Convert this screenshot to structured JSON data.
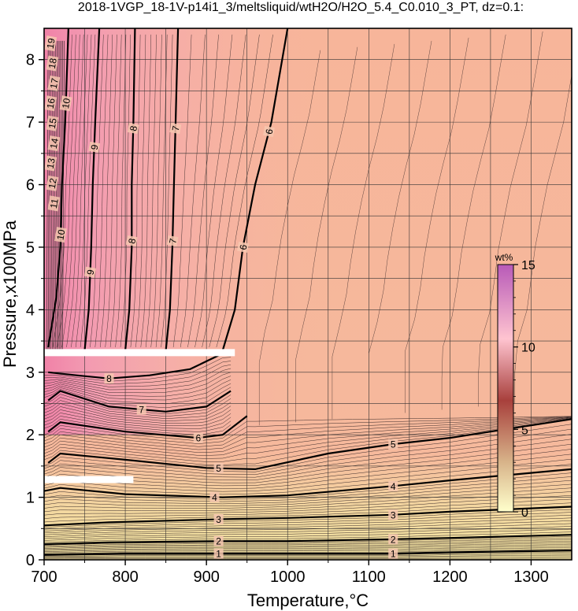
{
  "chart_data": {
    "type": "heatmap",
    "title": "2018-1VGP_18-1V-p14i1_3/meltsliquid/wtH2O/H2O_5.4_C0.010_3_PT, dz=0.1:",
    "xlabel": "Temperature,°C",
    "ylabel": "Pressure,x100MPa",
    "xlim": [
      700,
      1350
    ],
    "ylim": [
      0,
      8.5
    ],
    "x_ticks": [
      "700",
      "800",
      "900",
      "1000",
      "1100",
      "1200",
      "1300"
    ],
    "y_ticks": [
      "0",
      "1",
      "2",
      "3",
      "4",
      "5",
      "6",
      "7",
      "8"
    ],
    "grid": true,
    "colorbar": {
      "label": "wt%",
      "range": [
        0,
        15
      ],
      "ticks": [
        "0",
        "5",
        "10",
        "15"
      ],
      "placement": "right-inside",
      "colors": [
        "#ffffcc",
        "#d2b48c",
        "#a53a3a",
        "#ffc0cb",
        "#c064c0"
      ]
    },
    "background_colors": {
      "low_water": "#f4e7a8",
      "mid_water": "#f7b19a",
      "high_water": "#f29ab5"
    },
    "contour_labels": {
      "horizontal": [
        {
          "label": "1",
          "points": [
            [
              700,
              0.08
            ],
            [
              800,
              0.1
            ],
            [
              920,
              0.1
            ],
            [
              1000,
              0.1
            ],
            [
              1130,
              0.1
            ],
            [
              1200,
              0.12
            ],
            [
              1350,
              0.15
            ]
          ],
          "label_x": [
            915,
            1130
          ]
        },
        {
          "label": "2",
          "points": [
            [
              700,
              0.25
            ],
            [
              780,
              0.28
            ],
            [
              920,
              0.3
            ],
            [
              1000,
              0.3
            ],
            [
              1130,
              0.33
            ],
            [
              1200,
              0.35
            ],
            [
              1350,
              0.4
            ]
          ],
          "label_x": [
            915,
            1130
          ]
        },
        {
          "label": "3",
          "points": [
            [
              700,
              0.55
            ],
            [
              780,
              0.6
            ],
            [
              920,
              0.65
            ],
            [
              1000,
              0.67
            ],
            [
              1130,
              0.72
            ],
            [
              1200,
              0.77
            ],
            [
              1350,
              0.85
            ]
          ],
          "label_x": [
            915,
            1130
          ]
        },
        {
          "label": "4",
          "points": [
            [
              700,
              1.1
            ],
            [
              720,
              1.15
            ],
            [
              800,
              1.05
            ],
            [
              920,
              1.0
            ],
            [
              1000,
              1.03
            ],
            [
              1130,
              1.18
            ],
            [
              1200,
              1.27
            ],
            [
              1350,
              1.45
            ]
          ],
          "label_x": [
            910,
            1130
          ]
        },
        {
          "label": "5",
          "points": [
            [
              705,
              1.55
            ],
            [
              720,
              1.7
            ],
            [
              800,
              1.6
            ],
            [
              900,
              1.47
            ],
            [
              960,
              1.45
            ],
            [
              1050,
              1.7
            ],
            [
              1130,
              1.85
            ],
            [
              1200,
              1.95
            ],
            [
              1350,
              2.25
            ]
          ],
          "label_x": [
            915,
            1130
          ]
        },
        {
          "label": "6",
          "points": [
            [
              705,
              2.05
            ],
            [
              720,
              2.2
            ],
            [
              800,
              2.05
            ],
            [
              890,
              1.95
            ],
            [
              920,
              2.0
            ],
            [
              950,
              2.3
            ]
          ],
          "label_x": [
            890
          ]
        },
        {
          "label": "7",
          "points": [
            [
              705,
              2.55
            ],
            [
              720,
              2.7
            ],
            [
              780,
              2.45
            ],
            [
              850,
              2.37
            ],
            [
              900,
              2.45
            ],
            [
              930,
              2.7
            ]
          ],
          "label_x": [
            820
          ]
        },
        {
          "label": "8",
          "points": [
            [
              705,
              3.0
            ],
            [
              740,
              2.95
            ],
            [
              780,
              2.9
            ],
            [
              830,
              2.95
            ],
            [
              880,
              3.05
            ],
            [
              920,
              3.3
            ]
          ],
          "label_x": [
            780
          ]
        }
      ],
      "vertical": [
        {
          "label": "6",
          "points": [
            [
              920,
              3.35
            ],
            [
              935,
              4.0
            ],
            [
              945,
              5.0
            ],
            [
              960,
              6.0
            ],
            [
              980,
              7.0
            ],
            [
              1000,
              8.5
            ]
          ],
          "label_y": [
            5.0,
            6.85
          ]
        },
        {
          "label": "7",
          "points": [
            [
              850,
              3.35
            ],
            [
              855,
              4.0
            ],
            [
              858,
              5.0
            ],
            [
              860,
              6.0
            ],
            [
              862,
              7.0
            ],
            [
              865,
              8.5
            ]
          ],
          "label_y": [
            5.1,
            6.9
          ]
        },
        {
          "label": "8",
          "points": [
            [
              800,
              3.35
            ],
            [
              805,
              4.0
            ],
            [
              808,
              5.0
            ],
            [
              808,
              6.0
            ],
            [
              810,
              7.0
            ],
            [
              812,
              8.5
            ]
          ],
          "label_y": [
            5.1,
            6.9
          ]
        },
        {
          "label": "9",
          "points": [
            [
              750,
              3.35
            ],
            [
              755,
              4.0
            ],
            [
              758,
              5.0
            ],
            [
              760,
              6.0
            ],
            [
              763,
              7.0
            ],
            [
              768,
              8.5
            ]
          ],
          "label_y": [
            4.6,
            6.6
          ]
        },
        {
          "label": "10",
          "points": [
            [
              705,
              3.4
            ],
            [
              715,
              4.2
            ],
            [
              720,
              5.0
            ],
            [
              722,
              6.0
            ],
            [
              726,
              7.0
            ],
            [
              730,
              8.5
            ]
          ],
          "label_y": [
            5.2,
            7.3
          ]
        }
      ]
    },
    "extra_labels": [
      "11",
      "12",
      "13",
      "14",
      "15",
      "16",
      "17",
      "18",
      "19"
    ],
    "blanked_bands": [
      {
        "x": [
          700,
          935
        ],
        "y": 3.32
      },
      {
        "x": [
          700,
          810
        ],
        "y": 1.29
      }
    ]
  }
}
